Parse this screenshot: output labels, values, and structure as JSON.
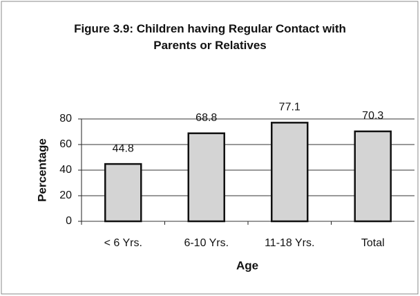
{
  "chart_data": {
    "type": "bar",
    "title": "Figure 3.9: Children having Regular Contact with Parents or Relatives",
    "xlabel": "Age",
    "ylabel": "Percentage",
    "categories": [
      "< 6 Yrs.",
      "6-10 Yrs.",
      "11-18 Yrs.",
      "Total"
    ],
    "values": [
      44.8,
      68.8,
      77.1,
      70.3
    ],
    "color": "#d4d4d4",
    "ylim": [
      0,
      80
    ],
    "yticks": [
      0,
      20,
      40,
      60,
      80
    ],
    "grid": true
  }
}
